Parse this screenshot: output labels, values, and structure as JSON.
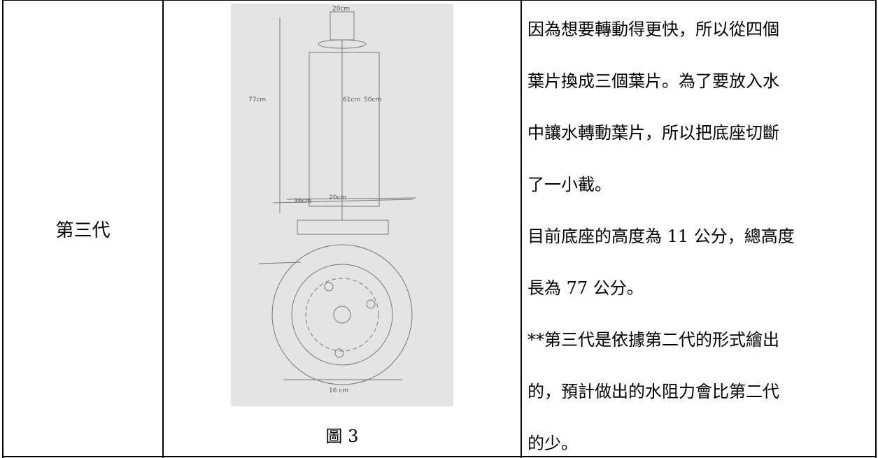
{
  "table": {
    "rows": [
      {
        "label": "第三代",
        "figure_caption": "圖 3",
        "description_lines": [
          "因為想要轉動得更快，所以從四個",
          "葉片換成三個葉片。為了要放入水",
          "中讓水轉動葉片，所以把底座切斷",
          "了一小截。",
          "目前底座的高度為 11 公分，總高度",
          "長為 77 公分。",
          "**第三代是依據第二代的形式繪出",
          "的，預計做出的水阻力會比第二代",
          "的少。"
        ]
      }
    ]
  }
}
